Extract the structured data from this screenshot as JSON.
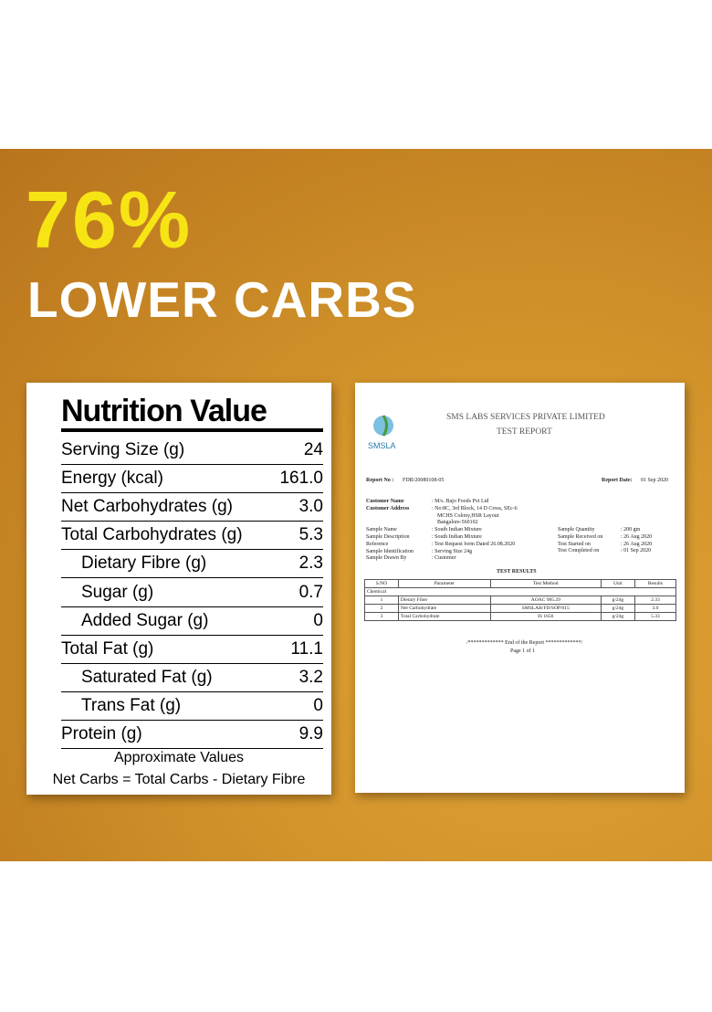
{
  "headline": {
    "percent": "76%",
    "subtitle": "LOWER CARBS"
  },
  "nutrition": {
    "title": "Nutrition Value",
    "rows": [
      [
        "Serving Size (g)",
        "24"
      ],
      [
        "Energy (kcal)",
        "161.0"
      ],
      [
        "Net Carbohydrates (g)",
        "3.0"
      ],
      [
        "Total Carbohydrates (g)",
        "5.3"
      ],
      [
        "Dietary Fibre (g)",
        "2.3"
      ],
      [
        "Sugar (g)",
        "0.7"
      ],
      [
        "Added Sugar (g)",
        "0"
      ],
      [
        "Total Fat (g)",
        "11.1"
      ],
      [
        "Saturated Fat (g)",
        "3.2"
      ],
      [
        "Trans Fat (g)",
        "0"
      ],
      [
        "Protein (g)",
        "9.9"
      ]
    ],
    "footnotes": [
      "Approximate Values",
      "Net Carbs = Total Carbs - Dietary Fibre"
    ]
  },
  "report": {
    "logo": "SMSLA",
    "company": "SMS LABS SERVICES PRIVATE LIMITED",
    "doc_title": "TEST REPORT",
    "report_no_label": "Report No :",
    "report_no": "FDB/20080108-05",
    "report_date_label": "Report Date:",
    "report_date": "01 Sep 2020",
    "left_fields": [
      [
        "Customer Name",
        [
          ": M/s. Bajo Foods Pvt Ltd"
        ]
      ],
      [
        "Customer Address",
        [
          ": No:8C, 3rd Block, 14 D Cross, SEc-6",
          "MCHS Colony,HSR Layout",
          "Bangalore-560102"
        ]
      ],
      [
        "Sample Name",
        [
          ": South Indian Mixture"
        ]
      ],
      [
        "Sample Description",
        [
          ": South Indian Mixture"
        ]
      ],
      [
        "Reference",
        [
          ": Test Request form Dated 26.08.2020"
        ]
      ],
      [
        "Sample Identification",
        [
          ": Serving Size 24g"
        ]
      ],
      [
        "Sample Drawn By",
        [
          ": Customer"
        ]
      ]
    ],
    "right_fields": [
      [
        "Sample Quantity",
        ": 200 gm"
      ],
      [
        "Sample Received on",
        ": 26 Aug 2020"
      ],
      [
        "Test Started on",
        ": 26 Aug 2020"
      ],
      [
        "Test Completed on",
        ": 01 Sep 2020"
      ]
    ],
    "section": "TEST RESULTS",
    "headers": [
      "S.NO",
      "Parameter",
      "Test Method",
      "Unit",
      "Results"
    ],
    "group": "Chemical",
    "rows": [
      [
        "1",
        "Dietary Fiber",
        "AOAC 985.29",
        "g/24g",
        "2.33"
      ],
      [
        "2",
        "Net Carbohydrate",
        "SMSLAB/FD/SOP/015",
        "g/24g",
        "3.0"
      ],
      [
        "3",
        "Total Carbohydrate",
        "IS 1656",
        "g/24g",
        "5.33"
      ]
    ],
    "end": "/************* End of the Report *************/",
    "page": "Page 1 of 1"
  }
}
